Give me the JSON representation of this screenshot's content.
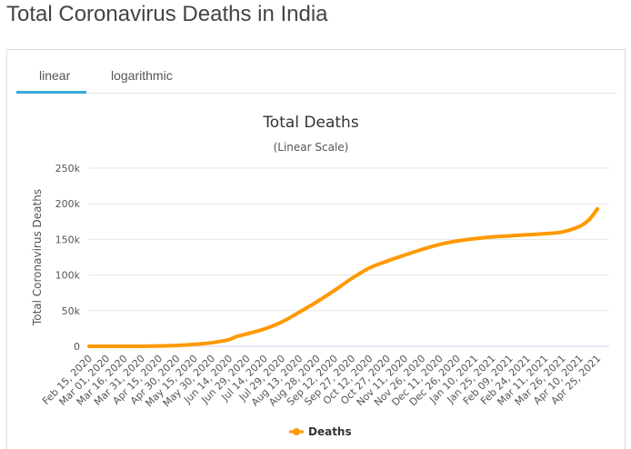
{
  "page": {
    "title": "Total Coronavirus Deaths in India"
  },
  "tabs": [
    {
      "label": "linear",
      "active": true
    },
    {
      "label": "logarithmic",
      "active": false
    }
  ],
  "colors": {
    "series": "#FF9900",
    "tab_accent": "#39A9DB",
    "grid": "#E6E6E6"
  },
  "chart_data": {
    "type": "line",
    "title": "Total Deaths",
    "subtitle": "(Linear Scale)",
    "ylabel": "Total Coronavirus Deaths",
    "xlabel": "",
    "ylim": [
      0,
      250000
    ],
    "yticks": [
      {
        "value": 0,
        "label": "0"
      },
      {
        "value": 50000,
        "label": "50k"
      },
      {
        "value": 100000,
        "label": "100k"
      },
      {
        "value": 150000,
        "label": "150k"
      },
      {
        "value": 200000,
        "label": "200k"
      },
      {
        "value": 250000,
        "label": "250k"
      }
    ],
    "x_range": [
      "2020-02-15",
      "2021-05-05"
    ],
    "xticks": [
      {
        "date": "2020-02-15",
        "label": "Feb 15, 2020"
      },
      {
        "date": "2020-03-01",
        "label": "Mar 01, 2020"
      },
      {
        "date": "2020-03-16",
        "label": "Mar 16, 2020"
      },
      {
        "date": "2020-03-31",
        "label": "Mar 31, 2020"
      },
      {
        "date": "2020-04-15",
        "label": "Apr 15, 2020"
      },
      {
        "date": "2020-04-30",
        "label": "Apr 30, 2020"
      },
      {
        "date": "2020-05-15",
        "label": "May 15, 2020"
      },
      {
        "date": "2020-05-30",
        "label": "May 30, 2020"
      },
      {
        "date": "2020-06-14",
        "label": "Jun 14, 2020"
      },
      {
        "date": "2020-06-29",
        "label": "Jun 29, 2020"
      },
      {
        "date": "2020-07-14",
        "label": "Jul 14, 2020"
      },
      {
        "date": "2020-07-29",
        "label": "Jul 29, 2020"
      },
      {
        "date": "2020-08-13",
        "label": "Aug 13, 2020"
      },
      {
        "date": "2020-08-28",
        "label": "Aug 28, 2020"
      },
      {
        "date": "2020-09-12",
        "label": "Sep 12, 2020"
      },
      {
        "date": "2020-09-27",
        "label": "Sep 27, 2020"
      },
      {
        "date": "2020-10-12",
        "label": "Oct 12, 2020"
      },
      {
        "date": "2020-10-27",
        "label": "Oct 27, 2020"
      },
      {
        "date": "2020-11-11",
        "label": "Nov 11, 2020"
      },
      {
        "date": "2020-11-26",
        "label": "Nov 26, 2020"
      },
      {
        "date": "2020-12-11",
        "label": "Dec 11, 2020"
      },
      {
        "date": "2020-12-26",
        "label": "Dec 26, 2020"
      },
      {
        "date": "2021-01-10",
        "label": "Jan 10, 2021"
      },
      {
        "date": "2021-01-25",
        "label": "Jan 25, 2021"
      },
      {
        "date": "2021-02-09",
        "label": "Feb 09, 2021"
      },
      {
        "date": "2021-02-24",
        "label": "Feb 24, 2021"
      },
      {
        "date": "2021-03-11",
        "label": "Mar 11, 2021"
      },
      {
        "date": "2021-03-26",
        "label": "Mar 26, 2021"
      },
      {
        "date": "2021-04-10",
        "label": "Apr 10, 2021"
      },
      {
        "date": "2021-04-25",
        "label": "Apr 25, 2021"
      }
    ],
    "series": [
      {
        "name": "Deaths",
        "color": "#FF9900",
        "points": [
          [
            "2020-02-15",
            0
          ],
          [
            "2020-03-16",
            2
          ],
          [
            "2020-03-31",
            35
          ],
          [
            "2020-04-15",
            400
          ],
          [
            "2020-04-30",
            1100
          ],
          [
            "2020-05-15",
            2700
          ],
          [
            "2020-05-30",
            5000
          ],
          [
            "2020-06-14",
            9500
          ],
          [
            "2020-06-19",
            13000
          ],
          [
            "2020-06-29",
            17400
          ],
          [
            "2020-07-14",
            24300
          ],
          [
            "2020-07-29",
            34200
          ],
          [
            "2020-08-13",
            48000
          ],
          [
            "2020-08-28",
            62500
          ],
          [
            "2020-09-12",
            78500
          ],
          [
            "2020-09-27",
            95500
          ],
          [
            "2020-10-12",
            110000
          ],
          [
            "2020-10-27",
            119500
          ],
          [
            "2020-11-11",
            128000
          ],
          [
            "2020-11-26",
            136000
          ],
          [
            "2020-12-11",
            143000
          ],
          [
            "2020-12-26",
            147800
          ],
          [
            "2021-01-10",
            151000
          ],
          [
            "2021-01-25",
            153500
          ],
          [
            "2021-02-09",
            155000
          ],
          [
            "2021-02-24",
            156500
          ],
          [
            "2021-03-11",
            158000
          ],
          [
            "2021-03-26",
            160500
          ],
          [
            "2021-04-10",
            168500
          ],
          [
            "2021-04-18",
            178000
          ],
          [
            "2021-04-25",
            193000
          ]
        ]
      }
    ],
    "legend": {
      "position": "bottom-center"
    },
    "grid": true
  }
}
